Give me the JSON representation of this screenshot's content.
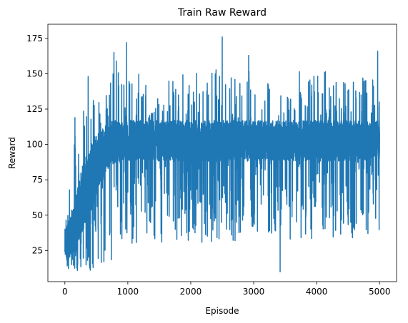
{
  "chart_data": {
    "type": "line",
    "title": "Train Raw Reward",
    "xlabel": "Episode",
    "ylabel": "Reward",
    "xlim": [
      -270,
      5270
    ],
    "ylim": [
      3,
      185
    ],
    "xticks": [
      0,
      1000,
      2000,
      3000,
      4000,
      5000
    ],
    "yticks": [
      25,
      50,
      75,
      100,
      125,
      150,
      175
    ],
    "grid": false,
    "legend": false,
    "series": [
      {
        "color": "#1f77b4",
        "episodes": 5000,
        "envelope": {
          "x": [
            0,
            50,
            100,
            150,
            200,
            250,
            300,
            350,
            400,
            450,
            500,
            550,
            600,
            650,
            700,
            750,
            800,
            900,
            1000,
            1500,
            2000,
            2500,
            3000,
            3500,
            4000,
            4500,
            5000
          ],
          "low": [
            10,
            9,
            10,
            10,
            10,
            10,
            11,
            10,
            10,
            11,
            11,
            12,
            13,
            14,
            15,
            18,
            22,
            28,
            30,
            30,
            30,
            32,
            32,
            32,
            33,
            33,
            30
          ],
          "core_low": [
            18,
            18,
            22,
            25,
            30,
            35,
            40,
            45,
            50,
            55,
            62,
            70,
            75,
            80,
            84,
            86,
            87,
            88,
            88,
            88,
            88,
            88,
            88,
            88,
            88,
            88,
            88
          ],
          "core_high": [
            40,
            45,
            50,
            60,
            70,
            80,
            88,
            95,
            100,
            105,
            108,
            110,
            112,
            114,
            115,
            116,
            117,
            117,
            117,
            117,
            117,
            117,
            117,
            117,
            117,
            117,
            117
          ],
          "high": [
            50,
            55,
            100,
            119,
            110,
            120,
            125,
            130,
            148,
            132,
            135,
            130,
            128,
            140,
            150,
            150,
            165,
            150,
            150,
            150,
            152,
            155,
            152,
            152,
            152,
            150,
            150
          ]
        },
        "notable_points": [
          {
            "x": 0,
            "y": 24
          },
          {
            "x": 160,
            "y": 119
          },
          {
            "x": 370,
            "y": 148
          },
          {
            "x": 780,
            "y": 165
          },
          {
            "x": 980,
            "y": 172
          },
          {
            "x": 2500,
            "y": 176
          },
          {
            "x": 2920,
            "y": 163
          },
          {
            "x": 3420,
            "y": 10
          },
          {
            "x": 4970,
            "y": 166
          }
        ]
      }
    ]
  }
}
